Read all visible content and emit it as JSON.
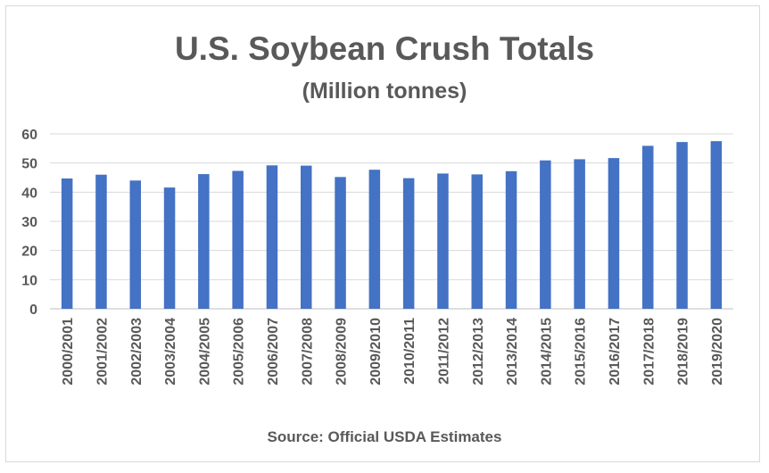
{
  "chart_data": {
    "type": "bar",
    "title": "U.S. Soybean Crush Totals",
    "subtitle": "(Million tonnes)",
    "source": "Source: Official USDA Estimates",
    "xlabel": "",
    "ylabel": "",
    "ylim": [
      0,
      60
    ],
    "yticks": [
      0,
      10,
      20,
      30,
      40,
      50,
      60
    ],
    "grid": true,
    "bar_color": "#4472c4",
    "categories": [
      "2000/2001",
      "2001/2002",
      "2002/2003",
      "2003/2004",
      "2004/2005",
      "2005/2006",
      "2006/2007",
      "2007/2008",
      "2008/2009",
      "2009/2010",
      "2010/2011",
      "2011/2012",
      "2012/2013",
      "2013/2014",
      "2014/2015",
      "2015/2016",
      "2016/2017",
      "2017/2018",
      "2018/2019",
      "2019/2020"
    ],
    "values": [
      44.7,
      46.0,
      44.0,
      41.6,
      46.2,
      47.3,
      49.2,
      49.1,
      45.2,
      47.7,
      44.8,
      46.4,
      46.1,
      47.2,
      50.9,
      51.3,
      51.7,
      55.9,
      57.2,
      57.5
    ]
  }
}
